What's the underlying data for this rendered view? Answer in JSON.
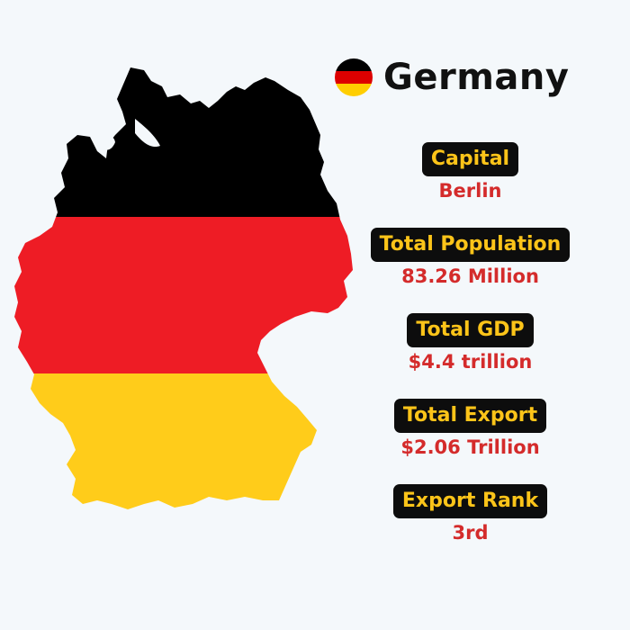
{
  "country": {
    "name": "Germany",
    "flag_icon": "germany-flag-icon",
    "flag_colors": [
      "#000000",
      "#dd0000",
      "#ffce00"
    ]
  },
  "map": {
    "icon": "germany-map-icon",
    "band_colors": [
      "#000000",
      "#ee1c25",
      "#ffcc1a"
    ]
  },
  "facts": [
    {
      "label": "Capital",
      "value": "Berlin"
    },
    {
      "label": "Total Population",
      "value": "83.26 Million"
    },
    {
      "label": "Total GDP",
      "value": "$4.4 trillion"
    },
    {
      "label": "Total Export",
      "value": "$2.06 Trillion"
    },
    {
      "label": "Export Rank",
      "value": "3rd"
    }
  ],
  "colors": {
    "background": "#f4f8fb",
    "label_bg": "#0d0d0d",
    "label_text": "#fcc419",
    "value_text": "#d42b2b",
    "title_text": "#111111"
  }
}
